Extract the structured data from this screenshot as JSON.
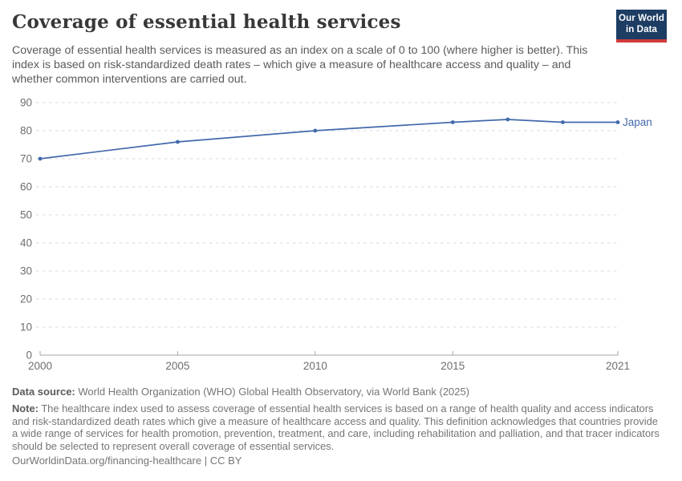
{
  "header": {
    "title": "Coverage of essential health services",
    "subtitle": "Coverage of essential health services is measured as an index on a scale of 0 to 100 (where higher is better). This index is based on risk-standardized death rates – which give a measure of healthcare access and quality – and whether common interventions are carried out."
  },
  "logo": {
    "line1": "Our World",
    "line2": "in Data"
  },
  "chart_data": {
    "type": "line",
    "title": "Coverage of essential health services",
    "x": [
      2000,
      2005,
      2010,
      2015,
      2017,
      2019,
      2021
    ],
    "series": [
      {
        "name": "Japan",
        "values": [
          70,
          76,
          80,
          83,
          84,
          83,
          83
        ],
        "color": "#4269ab"
      }
    ],
    "xlabel": "",
    "ylabel": "",
    "xlim": [
      2000,
      2021
    ],
    "ylim": [
      0,
      90
    ],
    "yticks": [
      0,
      10,
      20,
      30,
      40,
      50,
      60,
      70,
      80,
      90
    ],
    "xticks": [
      2000,
      2005,
      2010,
      2015,
      2021
    ],
    "grid": "horizontal-dashed",
    "legend_position": "end-of-line-label"
  },
  "footer": {
    "data_source_label": "Data source:",
    "data_source_text": "World Health Organization (WHO) Global Health Observatory, via World Bank (2025)",
    "note_label": "Note:",
    "note_text": "The healthcare index used to assess coverage of essential health services is based on a range of health quality and access indicators and risk-standardized death rates which give a measure of healthcare access and quality. This definition acknowledges that countries provide a wide range of services for health promotion, prevention, treatment, and care, including rehabilitation and palliation, and that tracer indicators should be selected to represent overall coverage of essential services.",
    "link": "OurWorldinData.org/financing-healthcare",
    "separator": "|",
    "license": "CC BY"
  },
  "colors": {
    "line": "#4269ab",
    "entity_label": "#4269ab",
    "grid": "#d9d9d9",
    "axis": "#a5a5a5",
    "tick_label": "#6e6e6e",
    "title": "#383838",
    "subtitle": "#5b5b5b",
    "footer": "#757575",
    "logo_bg": "#1d3d63",
    "logo_red": "#d13b3b"
  }
}
